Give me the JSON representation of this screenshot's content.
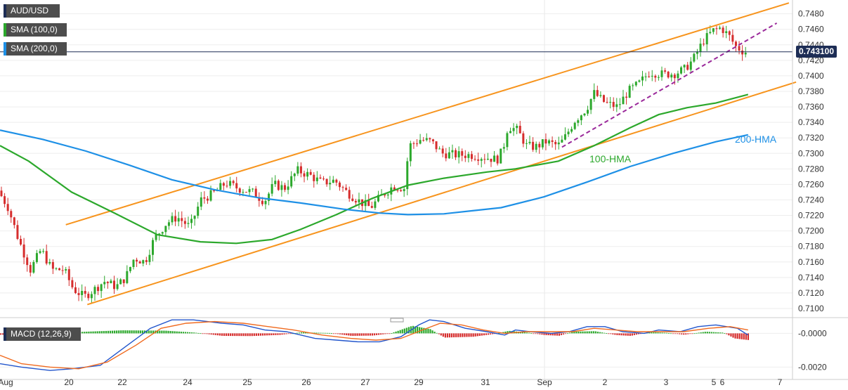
{
  "legend": {
    "symbol": "AUD/USD",
    "sma100": "SMA (100,0)",
    "sma200": "SMA (200,0)",
    "macd": "MACD (12,26,9)"
  },
  "last_price": "0.743100",
  "annotations": {
    "hma100": "100-HMA",
    "hma200": "200-HMA"
  },
  "colors": {
    "hma100": "#2ca82c",
    "hma200": "#1e90e6",
    "channel": "#f7941d",
    "support": "#9b2a9b",
    "bull": "#2ca82c",
    "bear": "#d62d2d",
    "macd": "#2255cc",
    "signal": "#f06a1f",
    "tag": "#1d2d55"
  },
  "chart_data": [
    {
      "type": "candlestick",
      "title": "AUD/USD",
      "x_ticks": [
        "Aug",
        "20",
        "22",
        "24",
        "25",
        "26",
        "27",
        "29",
        "31",
        "Sep",
        "2",
        "3",
        "5",
        "6",
        "7"
      ],
      "y_ticks": [
        "0.7480",
        "0.7460",
        "0.7440",
        "0.7420",
        "0.7400",
        "0.7380",
        "0.7360",
        "0.7340",
        "0.7320",
        "0.7300",
        "0.7280",
        "0.7260",
        "0.7240",
        "0.7220",
        "0.7200",
        "0.7180",
        "0.7160",
        "0.7140",
        "0.7120",
        "0.7100"
      ],
      "ylim": [
        0.709,
        0.7496
      ],
      "xlim": [
        0,
        1107
      ],
      "grid": true,
      "price_anchors": [
        [
          0,
          0.7252
        ],
        [
          14,
          0.723
        ],
        [
          28,
          0.719
        ],
        [
          45,
          0.715
        ],
        [
          60,
          0.7176
        ],
        [
          75,
          0.715
        ],
        [
          92,
          0.715
        ],
        [
          105,
          0.7125
        ],
        [
          120,
          0.7115
        ],
        [
          135,
          0.7125
        ],
        [
          148,
          0.7135
        ],
        [
          165,
          0.7128
        ],
        [
          178,
          0.714
        ],
        [
          190,
          0.7165
        ],
        [
          205,
          0.716
        ],
        [
          218,
          0.719
        ],
        [
          235,
          0.721
        ],
        [
          250,
          0.7218
        ],
        [
          268,
          0.7205
        ],
        [
          283,
          0.724
        ],
        [
          300,
          0.7248
        ],
        [
          318,
          0.7262
        ],
        [
          335,
          0.7255
        ],
        [
          355,
          0.725
        ],
        [
          372,
          0.7238
        ],
        [
          385,
          0.726
        ],
        [
          400,
          0.7255
        ],
        [
          418,
          0.7278
        ],
        [
          435,
          0.7272
        ],
        [
          452,
          0.7262
        ],
        [
          470,
          0.7265
        ],
        [
          487,
          0.725
        ],
        [
          505,
          0.7238
        ],
        [
          520,
          0.723
        ],
        [
          535,
          0.7245
        ],
        [
          552,
          0.7258
        ],
        [
          567,
          0.7255
        ],
        [
          574,
          0.731
        ],
        [
          590,
          0.7318
        ],
        [
          605,
          0.7315
        ],
        [
          620,
          0.73
        ],
        [
          640,
          0.7298
        ],
        [
          660,
          0.7298
        ],
        [
          680,
          0.7295
        ],
        [
          697,
          0.7292
        ],
        [
          705,
          0.7305
        ],
        [
          712,
          0.7335
        ],
        [
          725,
          0.733
        ],
        [
          738,
          0.731
        ],
        [
          750,
          0.7308
        ],
        [
          765,
          0.7315
        ],
        [
          782,
          0.731
        ],
        [
          790,
          0.7318
        ],
        [
          805,
          0.7342
        ],
        [
          822,
          0.7358
        ],
        [
          832,
          0.7378
        ],
        [
          848,
          0.7365
        ],
        [
          865,
          0.736
        ],
        [
          880,
          0.738
        ],
        [
          895,
          0.739
        ],
        [
          910,
          0.7405
        ],
        [
          928,
          0.7402
        ],
        [
          945,
          0.7403
        ],
        [
          958,
          0.7408
        ],
        [
          970,
          0.742
        ],
        [
          985,
          0.7445
        ],
        [
          998,
          0.7458
        ],
        [
          1010,
          0.7462
        ],
        [
          1022,
          0.745
        ],
        [
          1030,
          0.7438
        ],
        [
          1042,
          0.7431
        ]
      ],
      "candle_spacing_px": 4.5,
      "hma100": {
        "name": "100-HMA",
        "points": [
          [
            0,
            0.731
          ],
          [
            40,
            0.729
          ],
          [
            100,
            0.725
          ],
          [
            160,
            0.7223
          ],
          [
            220,
            0.7195
          ],
          [
            280,
            0.7186
          ],
          [
            330,
            0.7184
          ],
          [
            380,
            0.7189
          ],
          [
            420,
            0.7202
          ],
          [
            470,
            0.7221
          ],
          [
            520,
            0.7242
          ],
          [
            570,
            0.7259
          ],
          [
            620,
            0.7268
          ],
          [
            680,
            0.7276
          ],
          [
            720,
            0.728
          ],
          [
            780,
            0.729
          ],
          [
            830,
            0.731
          ],
          [
            880,
            0.7333
          ],
          [
            920,
            0.735
          ],
          [
            960,
            0.7359
          ],
          [
            1000,
            0.7365
          ],
          [
            1045,
            0.7376
          ]
        ]
      },
      "hma200": {
        "name": "200-HMA",
        "points": [
          [
            0,
            0.733
          ],
          [
            60,
            0.7318
          ],
          [
            120,
            0.7303
          ],
          [
            180,
            0.7285
          ],
          [
            240,
            0.7266
          ],
          [
            300,
            0.7253
          ],
          [
            360,
            0.7243
          ],
          [
            420,
            0.7236
          ],
          [
            480,
            0.7228
          ],
          [
            530,
            0.7223
          ],
          [
            570,
            0.7221
          ],
          [
            620,
            0.7222
          ],
          [
            660,
            0.7226
          ],
          [
            700,
            0.723
          ],
          [
            760,
            0.7244
          ],
          [
            820,
            0.7263
          ],
          [
            880,
            0.7283
          ],
          [
            940,
            0.73
          ],
          [
            1000,
            0.7315
          ],
          [
            1045,
            0.7324
          ]
        ]
      },
      "channel_upper": [
        [
          92,
          0.7208
        ],
        [
          1102,
          0.7494
        ]
      ],
      "channel_lower": [
        [
          122,
          0.7105
        ],
        [
          1112,
          0.7392
        ]
      ],
      "support_line": [
        [
          785,
          0.7308
        ],
        [
          1085,
          0.7468
        ]
      ],
      "last_price_line": 0.7431
    },
    {
      "type": "bar",
      "title": "MACD (12,26,9)",
      "y_ticks": [
        "-0.0000",
        "-0.0020"
      ],
      "ylim": [
        -0.0024,
        0.0006
      ],
      "histogram_anchors": [
        [
          0,
          -8e-05
        ],
        [
          45,
          -5e-05
        ],
        [
          80,
          3e-05
        ],
        [
          120,
          0.0001
        ],
        [
          170,
          0.00018
        ],
        [
          230,
          0.00016
        ],
        [
          270,
          5e-05
        ],
        [
          310,
          -0.00015
        ],
        [
          350,
          -0.00016
        ],
        [
          390,
          -9e-05
        ],
        [
          420,
          6e-05
        ],
        [
          460,
          2e-05
        ],
        [
          490,
          -0.00015
        ],
        [
          520,
          -0.00013
        ],
        [
          545,
          0.0
        ],
        [
          575,
          0.00045
        ],
        [
          600,
          0.00025
        ],
        [
          620,
          -0.00025
        ],
        [
          660,
          -0.0002
        ],
        [
          690,
          -3e-05
        ],
        [
          710,
          0.00015
        ],
        [
          735,
          5e-05
        ],
        [
          760,
          -0.0001
        ],
        [
          780,
          -0.00014
        ],
        [
          800,
          0.0001
        ],
        [
          830,
          0.00013
        ],
        [
          860,
          -0.0001
        ],
        [
          880,
          -0.00015
        ],
        [
          905,
          8e-05
        ],
        [
          930,
          3e-05
        ],
        [
          955,
          -8e-05
        ],
        [
          985,
          0.0001
        ],
        [
          1010,
          4e-05
        ],
        [
          1025,
          -0.0003
        ],
        [
          1045,
          -0.0004
        ]
      ],
      "macd_line": [
        [
          0,
          -0.0018
        ],
        [
          30,
          -0.002
        ],
        [
          70,
          -0.0022
        ],
        [
          100,
          -0.0021
        ],
        [
          140,
          -0.0019
        ],
        [
          175,
          -0.0008
        ],
        [
          210,
          0.0003
        ],
        [
          240,
          0.0008
        ],
        [
          270,
          0.0008
        ],
        [
          310,
          0.0006
        ],
        [
          340,
          0.0005
        ],
        [
          370,
          0.0002
        ],
        [
          400,
          0.0001
        ],
        [
          440,
          -0.0003
        ],
        [
          470,
          -0.0004
        ],
        [
          500,
          -0.0005
        ],
        [
          530,
          -0.0005
        ],
        [
          560,
          -0.0002
        ],
        [
          585,
          0.0005
        ],
        [
          600,
          0.0008
        ],
        [
          620,
          0.0007
        ],
        [
          650,
          0.0003
        ],
        [
          680,
          0.0001
        ],
        [
          705,
          -0.0001
        ],
        [
          720,
          0.0002
        ],
        [
          740,
          0.0001
        ],
        [
          770,
          0.0
        ],
        [
          795,
          0.0001
        ],
        [
          820,
          0.0004
        ],
        [
          845,
          0.0004
        ],
        [
          870,
          0.0001
        ],
        [
          900,
          0.0
        ],
        [
          920,
          0.0002
        ],
        [
          950,
          0.0001
        ],
        [
          975,
          0.0004
        ],
        [
          1000,
          0.0005
        ],
        [
          1030,
          0.0003
        ],
        [
          1045,
          -0.0001
        ]
      ],
      "signal_line": [
        [
          0,
          -0.0013
        ],
        [
          30,
          -0.0018
        ],
        [
          70,
          -0.002
        ],
        [
          110,
          -0.0021
        ],
        [
          150,
          -0.0017
        ],
        [
          190,
          -0.0007
        ],
        [
          225,
          0.0003
        ],
        [
          260,
          0.0006
        ],
        [
          300,
          0.0007
        ],
        [
          340,
          0.0006
        ],
        [
          375,
          0.0004
        ],
        [
          410,
          0.0002
        ],
        [
          450,
          -0.0001
        ],
        [
          490,
          -0.0003
        ],
        [
          525,
          -0.0004
        ],
        [
          560,
          -0.0003
        ],
        [
          590,
          0.0002
        ],
        [
          615,
          0.0006
        ],
        [
          645,
          0.0005
        ],
        [
          675,
          0.0002
        ],
        [
          705,
          0.0
        ],
        [
          735,
          0.0001
        ],
        [
          765,
          0.0001
        ],
        [
          800,
          0.0001
        ],
        [
          830,
          0.0003
        ],
        [
          860,
          0.0002
        ],
        [
          890,
          0.0001
        ],
        [
          920,
          0.0001
        ],
        [
          955,
          0.0001
        ],
        [
          990,
          0.0003
        ],
        [
          1020,
          0.0004
        ],
        [
          1045,
          0.0002
        ]
      ]
    }
  ]
}
